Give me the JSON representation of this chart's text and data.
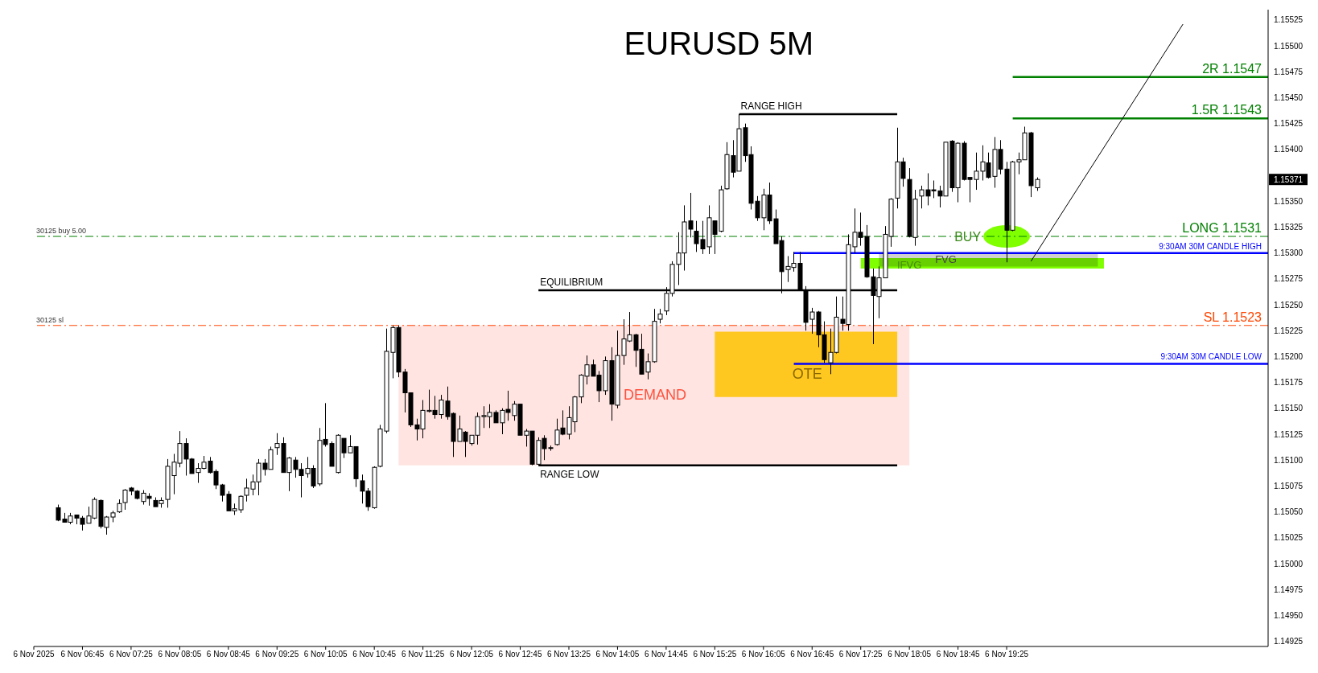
{
  "chart_data": {
    "type": "candlestick",
    "title": "EURUSD 5M",
    "xlim": [
      "2025-11-06T06:05",
      "2025-11-06T23:00"
    ],
    "xticks": [
      {
        "value": "2025-11-06T06:05",
        "label": "6 Nov 2025"
      },
      {
        "value": "2025-11-06T06:45",
        "label": "6 Nov 06:45"
      },
      {
        "value": "2025-11-06T07:25",
        "label": "6 Nov 07:25"
      },
      {
        "value": "2025-11-06T08:05",
        "label": "6 Nov 08:05"
      },
      {
        "value": "2025-11-06T08:45",
        "label": "6 Nov 08:45"
      },
      {
        "value": "2025-11-06T09:25",
        "label": "6 Nov 09:25"
      },
      {
        "value": "2025-11-06T10:05",
        "label": "6 Nov 10:05"
      },
      {
        "value": "2025-11-06T10:45",
        "label": "6 Nov 10:45"
      },
      {
        "value": "2025-11-06T11:25",
        "label": "6 Nov 11:25"
      },
      {
        "value": "2025-11-06T12:05",
        "label": "6 Nov 12:05"
      },
      {
        "value": "2025-11-06T12:45",
        "label": "6 Nov 12:45"
      },
      {
        "value": "2025-11-06T13:25",
        "label": "6 Nov 13:25"
      },
      {
        "value": "2025-11-06T14:05",
        "label": "6 Nov 14:05"
      },
      {
        "value": "2025-11-06T14:45",
        "label": "6 Nov 14:45"
      },
      {
        "value": "2025-11-06T15:25",
        "label": "6 Nov 15:25"
      },
      {
        "value": "2025-11-06T16:05",
        "label": "6 Nov 16:05"
      },
      {
        "value": "2025-11-06T16:45",
        "label": "6 Nov 16:45"
      },
      {
        "value": "2025-11-06T17:25",
        "label": "6 Nov 17:25"
      },
      {
        "value": "2025-11-06T18:05",
        "label": "6 Nov 18:05"
      },
      {
        "value": "2025-11-06T18:45",
        "label": "6 Nov 18:45"
      },
      {
        "value": "2025-11-06T19:25",
        "label": "6 Nov 19:25"
      }
    ],
    "ylim": [
      1.1492,
      1.15535
    ],
    "yticks": [
      1.14925,
      {
        "value": 1.1495,
        "label": "1.14950"
      },
      1.14975,
      {
        "value": 1.15,
        "label": "1.15000"
      },
      1.15025,
      {
        "value": 1.1505,
        "label": "1.15050"
      },
      1.15075,
      {
        "value": 1.151,
        "label": "1.15100"
      },
      1.15125,
      {
        "value": 1.1515,
        "label": "1.15150"
      },
      1.15175,
      {
        "value": 1.152,
        "label": "1.15200"
      },
      1.15225,
      {
        "value": 1.1525,
        "label": "1.15250"
      },
      1.15275,
      {
        "value": 1.153,
        "label": "1.15300"
      },
      1.15325,
      {
        "value": 1.1535,
        "label": "1.15350"
      },
      {
        "value": 1.154,
        "label": "1.15400"
      },
      1.15425,
      {
        "value": 1.1545,
        "label": "1.15450"
      },
      1.15475,
      {
        "value": 1.155,
        "label": "1.15500"
      },
      1.15525
    ],
    "ref_lines": [
      {
        "axis": "y",
        "value": 1.15316,
        "label": "LONG 1.1531",
        "color": "#008000",
        "line_style": "dashed"
      },
      {
        "axis": "y",
        "value": 1.1523,
        "label": "SL 1.1523",
        "color": "#ff4500",
        "line_style": "dashed"
      }
    ],
    "annotations": [
      {
        "text": "30125 buy 5.00",
        "x": "2025-11-06T06:05",
        "y": 1.15316
      },
      {
        "text": "30125 sl",
        "x": "2025-11-06T06:05",
        "y": 1.1523
      },
      {
        "text": "FVG",
        "x": "2025-11-06T18:35",
        "y": 1.15294
      },
      {
        "text": "IFVG",
        "x": "2025-11-06T18:05",
        "y": 1.15289
      },
      {
        "text": "BUY",
        "x": "2025-11-06T19:25",
        "y": 1.15316
      },
      "1.15371",
      "DEMAND",
      "OTE"
    ],
    "series": [
      {
        "type": "area",
        "x": [
          "2025-11-06T11:05",
          "2025-11-06T18:05"
        ],
        "values": [
          null,
          null
        ],
        "lower": [
          1.15095,
          1.15095
        ],
        "upper": [
          1.1523,
          1.1523
        ],
        "color": "#ffe4e1"
      },
      {
        "type": "area",
        "x": [
          "2025-11-06T15:25",
          "2025-11-06T17:55"
        ],
        "values": [
          null,
          null
        ],
        "lower": [
          1.15161,
          1.15161
        ],
        "upper": [
          1.15224,
          1.15224
        ],
        "color": "#ffc820"
      },
      {
        "type": "area",
        "x": [
          "2025-11-06T17:40",
          "2025-11-06T20:40"
        ],
        "values": [
          null,
          null
        ],
        "lower": [
          1.15287,
          1.15287
        ],
        "upper": [
          1.153,
          1.153
        ],
        "color": "#d0d0d0"
      },
      {
        "type": "area",
        "x": [
          "2025-11-06T17:25",
          "2025-11-06T20:45"
        ],
        "values": [
          null,
          null
        ],
        "lower": [
          1.15285,
          1.15285
        ],
        "upper": [
          1.15295,
          1.15295
        ],
        "color": "#80ff00"
      },
      {
        "type": "line",
        "name": "RANGE HIGH",
        "x": [
          "2025-11-06T15:45",
          "2025-11-06T17:55"
        ],
        "values": [
          1.15434,
          1.15434
        ],
        "color": "#000000"
      },
      {
        "type": "line",
        "name": "EQUILIBRIUM",
        "x": [
          "2025-11-06T13:00",
          "2025-11-06T17:55"
        ],
        "values": [
          1.15264,
          1.15264
        ],
        "color": "#000000"
      },
      {
        "type": "line",
        "name": "RANGE LOW",
        "x": [
          "2025-11-06T13:00",
          "2025-11-06T17:55"
        ],
        "values": [
          1.15095,
          1.15095
        ],
        "color": "#000000"
      },
      {
        "type": "line",
        "name": "9:30AM 30M CANDLE HIGH",
        "x": [
          "2025-11-06T16:30",
          "2025-11-06T23:00"
        ],
        "values": [
          1.153,
          1.153
        ],
        "color": "#0000ff"
      },
      {
        "type": "line",
        "name": "9:30AM 30M CANDLE LOW",
        "x": [
          "2025-11-06T16:30",
          "2025-11-06T23:00"
        ],
        "values": [
          1.15193,
          1.15193
        ],
        "color": "#0000ff"
      },
      {
        "type": "line",
        "name": "2R 1.1547",
        "x": [
          "2025-11-06T19:30",
          "2025-11-06T23:00"
        ],
        "values": [
          1.1547,
          1.1547
        ],
        "color": "#008000"
      },
      {
        "type": "line",
        "name": "1.5R 1.1543",
        "x": [
          "2025-11-06T19:30",
          "2025-11-06T23:00"
        ],
        "values": [
          1.1543,
          1.1543
        ],
        "color": "#008000"
      },
      {
        "type": "line",
        "x": [
          "2025-11-06T19:45",
          "2025-11-06T21:50"
        ],
        "values": [
          1.15292,
          1.15521
        ],
        "color": "#000000"
      },
      {
        "color": "#000000",
        "x": [
          "2025-11-06T06:25",
          "2025-11-06T06:30",
          "2025-11-06T06:35",
          "2025-11-06T06:40",
          "2025-11-06T06:45",
          "2025-11-06T06:50",
          "2025-11-06T06:55",
          "2025-11-06T07:00",
          "2025-11-06T07:05",
          "2025-11-06T07:10",
          "2025-11-06T07:15",
          "2025-11-06T07:20",
          "2025-11-06T07:25",
          "2025-11-06T07:30",
          "2025-11-06T07:35",
          "2025-11-06T07:40",
          "2025-11-06T07:45",
          "2025-11-06T07:50",
          "2025-11-06T07:55",
          "2025-11-06T08:00",
          "2025-11-06T08:05",
          "2025-11-06T08:10",
          "2025-11-06T08:15",
          "2025-11-06T08:20",
          "2025-11-06T08:25",
          "2025-11-06T08:30",
          "2025-11-06T08:35",
          "2025-11-06T08:40",
          "2025-11-06T08:45",
          "2025-11-06T08:50",
          "2025-11-06T08:55",
          "2025-11-06T09:00",
          "2025-11-06T09:05",
          "2025-11-06T09:10",
          "2025-11-06T09:15",
          "2025-11-06T09:20",
          "2025-11-06T09:25",
          "2025-11-06T09:30",
          "2025-11-06T09:35",
          "2025-11-06T09:40",
          "2025-11-06T09:45",
          "2025-11-06T09:50",
          "2025-11-06T09:55",
          "2025-11-06T10:00",
          "2025-11-06T10:05",
          "2025-11-06T10:10",
          "2025-11-06T10:15",
          "2025-11-06T10:20",
          "2025-11-06T10:25",
          "2025-11-06T10:30",
          "2025-11-06T10:35",
          "2025-11-06T10:40",
          "2025-11-06T10:45",
          "2025-11-06T10:50",
          "2025-11-06T10:55",
          "2025-11-06T11:00",
          "2025-11-06T11:05",
          "2025-11-06T11:10",
          "2025-11-06T11:15",
          "2025-11-06T11:20",
          "2025-11-06T11:25",
          "2025-11-06T11:30",
          "2025-11-06T11:35",
          "2025-11-06T11:40",
          "2025-11-06T11:45",
          "2025-11-06T11:50",
          "2025-11-06T11:55",
          "2025-11-06T12:00",
          "2025-11-06T12:05",
          "2025-11-06T12:10",
          "2025-11-06T12:15",
          "2025-11-06T12:20",
          "2025-11-06T12:25",
          "2025-11-06T12:30",
          "2025-11-06T12:35",
          "2025-11-06T12:40",
          "2025-11-06T12:45",
          "2025-11-06T12:50",
          "2025-11-06T12:55",
          "2025-11-06T13:00",
          "2025-11-06T13:05",
          "2025-11-06T13:10",
          "2025-11-06T13:15",
          "2025-11-06T13:20",
          "2025-11-06T13:25",
          "2025-11-06T13:30",
          "2025-11-06T13:35",
          "2025-11-06T13:40",
          "2025-11-06T13:45",
          "2025-11-06T13:50",
          "2025-11-06T13:55",
          "2025-11-06T14:00",
          "2025-11-06T14:05",
          "2025-11-06T14:10",
          "2025-11-06T14:15",
          "2025-11-06T14:20",
          "2025-11-06T14:25",
          "2025-11-06T14:30",
          "2025-11-06T14:35",
          "2025-11-06T14:40",
          "2025-11-06T14:45",
          "2025-11-06T14:50",
          "2025-11-06T14:55",
          "2025-11-06T15:00",
          "2025-11-06T15:05",
          "2025-11-06T15:10",
          "2025-11-06T15:15",
          "2025-11-06T15:20",
          "2025-11-06T15:25",
          "2025-11-06T15:30",
          "2025-11-06T15:35",
          "2025-11-06T15:40",
          "2025-11-06T15:45",
          "2025-11-06T15:50",
          "2025-11-06T15:55",
          "2025-11-06T16:00",
          "2025-11-06T16:05",
          "2025-11-06T16:10",
          "2025-11-06T16:15",
          "2025-11-06T16:20",
          "2025-11-06T16:25",
          "2025-11-06T16:30",
          "2025-11-06T16:35",
          "2025-11-06T16:40",
          "2025-11-06T16:45",
          "2025-11-06T16:50",
          "2025-11-06T16:55",
          "2025-11-06T17:00",
          "2025-11-06T17:05",
          "2025-11-06T17:10",
          "2025-11-06T17:15",
          "2025-11-06T17:20",
          "2025-11-06T17:25",
          "2025-11-06T17:30",
          "2025-11-06T17:35",
          "2025-11-06T17:40",
          "2025-11-06T17:45",
          "2025-11-06T17:50",
          "2025-11-06T17:55",
          "2025-11-06T18:00",
          "2025-11-06T18:05",
          "2025-11-06T18:10",
          "2025-11-06T18:15",
          "2025-11-06T18:20",
          "2025-11-06T18:25",
          "2025-11-06T18:30",
          "2025-11-06T18:35",
          "2025-11-06T18:40",
          "2025-11-06T18:45",
          "2025-11-06T18:50",
          "2025-11-06T18:55",
          "2025-11-06T19:00",
          "2025-11-06T19:05",
          "2025-11-06T19:10",
          "2025-11-06T19:15",
          "2025-11-06T19:20",
          "2025-11-06T19:25",
          "2025-11-06T19:30",
          "2025-11-06T19:35",
          "2025-11-06T19:40",
          "2025-11-06T19:45",
          "2025-11-06T19:50"
        ],
        "ohlc": [
          [
            1.15054,
            1.15057,
            1.15041,
            1.15042
          ],
          [
            1.15043,
            1.15049,
            1.1504,
            1.1504
          ],
          [
            1.1504,
            1.15049,
            1.15038,
            1.15046
          ],
          [
            1.15047,
            1.15047,
            1.15038,
            1.15044
          ],
          [
            1.15044,
            1.15046,
            1.15032,
            1.15038
          ],
          [
            1.15039,
            1.15055,
            1.15039,
            1.15046
          ],
          [
            1.15044,
            1.15064,
            1.15043,
            1.15062
          ],
          [
            1.15061,
            1.15062,
            1.15034,
            1.15036
          ],
          [
            1.15035,
            1.15046,
            1.15028,
            1.15045
          ],
          [
            1.15045,
            1.15051,
            1.1504,
            1.15049
          ],
          [
            1.1505,
            1.15062,
            1.15049,
            1.15058
          ],
          [
            1.15059,
            1.15072,
            1.15052,
            1.15071
          ],
          [
            1.15073,
            1.15074,
            1.15066,
            1.1507
          ],
          [
            1.1507,
            1.15071,
            1.15062,
            1.15063
          ],
          [
            1.1506,
            1.15071,
            1.15057,
            1.15068
          ],
          [
            1.15065,
            1.15068,
            1.15056,
            1.15063
          ],
          [
            1.15061,
            1.15064,
            1.15055,
            1.15055
          ],
          [
            1.15058,
            1.15064,
            1.15054,
            1.15061
          ],
          [
            1.15062,
            1.15101,
            1.15054,
            1.15094
          ],
          [
            1.15085,
            1.15106,
            1.15067,
            1.15098
          ],
          [
            1.15097,
            1.15128,
            1.15093,
            1.15116
          ],
          [
            1.15116,
            1.15121,
            1.15085,
            1.15101
          ],
          [
            1.15101,
            1.15102,
            1.15087,
            1.15087
          ],
          [
            1.15088,
            1.15097,
            1.15078,
            1.15092
          ],
          [
            1.15092,
            1.15104,
            1.15091,
            1.15098
          ],
          [
            1.15099,
            1.15103,
            1.15087,
            1.15088
          ],
          [
            1.15089,
            1.15091,
            1.15072,
            1.15076
          ],
          [
            1.15076,
            1.15077,
            1.1506,
            1.15066
          ],
          [
            1.15067,
            1.1507,
            1.15051,
            1.15051
          ],
          [
            1.15051,
            1.15058,
            1.15047,
            1.15053
          ],
          [
            1.15052,
            1.15066,
            1.15049,
            1.15065
          ],
          [
            1.15066,
            1.15082,
            1.1506,
            1.15073
          ],
          [
            1.15072,
            1.15086,
            1.15066,
            1.15079
          ],
          [
            1.15079,
            1.15101,
            1.15066,
            1.15097
          ],
          [
            1.15097,
            1.15101,
            1.15085,
            1.15091
          ],
          [
            1.15091,
            1.15113,
            1.15091,
            1.1511
          ],
          [
            1.15112,
            1.15126,
            1.15105,
            1.15116
          ],
          [
            1.15116,
            1.15122,
            1.15088,
            1.15088
          ],
          [
            1.15088,
            1.15103,
            1.1507,
            1.15102
          ],
          [
            1.151,
            1.15103,
            1.15083,
            1.15091
          ],
          [
            1.15091,
            1.15097,
            1.15064,
            1.15085
          ],
          [
            1.15087,
            1.15103,
            1.15083,
            1.15092
          ],
          [
            1.15092,
            1.15095,
            1.15073,
            1.15075
          ],
          [
            1.15077,
            1.15131,
            1.15075,
            1.15119
          ],
          [
            1.1512,
            1.15155,
            1.15113,
            1.15115
          ],
          [
            1.15116,
            1.15118,
            1.15094,
            1.15094
          ],
          [
            1.15088,
            1.15125,
            1.15087,
            1.15124
          ],
          [
            1.15121,
            1.15121,
            1.15102,
            1.15107
          ],
          [
            1.15107,
            1.15124,
            1.15107,
            1.15113
          ],
          [
            1.15113,
            1.15113,
            1.15074,
            1.15082
          ],
          [
            1.1508,
            1.15086,
            1.15058,
            1.1507
          ],
          [
            1.1507,
            1.15073,
            1.15051,
            1.15055
          ],
          [
            1.15054,
            1.15094,
            1.15053,
            1.15093
          ],
          [
            1.15094,
            1.15134,
            1.15093,
            1.1513
          ],
          [
            1.15128,
            1.15227,
            1.15126,
            1.15205
          ],
          [
            1.15204,
            1.1523,
            1.15179,
            1.15228
          ],
          [
            1.15228,
            1.1523,
            1.1518,
            1.15185
          ],
          [
            1.15185,
            1.15188,
            1.15146,
            1.15165
          ],
          [
            1.15165,
            1.15165,
            1.15132,
            1.15134
          ],
          [
            1.15134,
            1.1514,
            1.15119,
            1.1513
          ],
          [
            1.1513,
            1.15158,
            1.15121,
            1.15148
          ],
          [
            1.15147,
            1.15168,
            1.15146,
            1.15148
          ],
          [
            1.15148,
            1.15162,
            1.1514,
            1.15144
          ],
          [
            1.15144,
            1.15163,
            1.1514,
            1.15158
          ],
          [
            1.15157,
            1.15171,
            1.15139,
            1.15142
          ],
          [
            1.15145,
            1.15146,
            1.15103,
            1.15118
          ],
          [
            1.15118,
            1.15143,
            1.15118,
            1.1513
          ],
          [
            1.15127,
            1.15128,
            1.15103,
            1.15118
          ],
          [
            1.15116,
            1.15124,
            1.15114,
            1.15124
          ],
          [
            1.15124,
            1.15146,
            1.15115,
            1.15142
          ],
          [
            1.15142,
            1.15152,
            1.15131,
            1.15143
          ],
          [
            1.15142,
            1.15154,
            1.15131,
            1.15146
          ],
          [
            1.15146,
            1.15148,
            1.15136,
            1.15136
          ],
          [
            1.15136,
            1.1515,
            1.15125,
            1.15148
          ],
          [
            1.15149,
            1.15167,
            1.15138,
            1.15146
          ],
          [
            1.15143,
            1.15157,
            1.15138,
            1.15154
          ],
          [
            1.15154,
            1.15154,
            1.15124,
            1.15124
          ],
          [
            1.15124,
            1.1513,
            1.15113,
            1.15128
          ],
          [
            1.15128,
            1.15128,
            1.15095,
            1.15096
          ],
          [
            1.15096,
            1.15122,
            1.15095,
            1.15119
          ],
          [
            1.15121,
            1.15124,
            1.151,
            1.15111
          ],
          [
            1.15112,
            1.15114,
            1.15109,
            1.15112
          ],
          [
            1.15115,
            1.1514,
            1.15114,
            1.15129
          ],
          [
            1.15131,
            1.15148,
            1.15124,
            1.15125
          ],
          [
            1.15125,
            1.15152,
            1.1512,
            1.15141
          ],
          [
            1.15137,
            1.15162,
            1.15127,
            1.15161
          ],
          [
            1.15161,
            1.15183,
            1.15155,
            1.15182
          ],
          [
            1.15181,
            1.15201,
            1.15173,
            1.15192
          ],
          [
            1.15192,
            1.15197,
            1.15181,
            1.15181
          ],
          [
            1.15182,
            1.15186,
            1.15156,
            1.15167
          ],
          [
            1.15167,
            1.152,
            1.15163,
            1.15196
          ],
          [
            1.15196,
            1.15209,
            1.15138,
            1.15154
          ],
          [
            1.15153,
            1.15225,
            1.1515,
            1.15201
          ],
          [
            1.15201,
            1.15236,
            1.15192,
            1.15217
          ],
          [
            1.15215,
            1.15243,
            1.15214,
            1.15221
          ],
          [
            1.15221,
            1.15222,
            1.1519,
            1.15206
          ],
          [
            1.15207,
            1.15222,
            1.15183,
            1.15183
          ],
          [
            1.15185,
            1.15203,
            1.15178,
            1.15195
          ],
          [
            1.15195,
            1.15246,
            1.15194,
            1.15234
          ],
          [
            1.15236,
            1.15246,
            1.15232,
            1.15241
          ],
          [
            1.15244,
            1.15267,
            1.1524,
            1.15261
          ],
          [
            1.15261,
            1.15292,
            1.15258,
            1.15289
          ],
          [
            1.15289,
            1.1532,
            1.15269,
            1.153
          ],
          [
            1.153,
            1.15346,
            1.15283,
            1.1533
          ],
          [
            1.15331,
            1.15358,
            1.15315,
            1.15323
          ],
          [
            1.15321,
            1.15331,
            1.15301,
            1.15309
          ],
          [
            1.15313,
            1.15331,
            1.15299,
            1.15304
          ],
          [
            1.15306,
            1.15346,
            1.15299,
            1.15334
          ],
          [
            1.15331,
            1.15331,
            1.15299,
            1.15318
          ],
          [
            1.15321,
            1.15365,
            1.1532,
            1.15361
          ],
          [
            1.15362,
            1.15407,
            1.15361,
            1.15395
          ],
          [
            1.15394,
            1.15409,
            1.15373,
            1.15378
          ],
          [
            1.15379,
            1.15434,
            1.15379,
            1.1542
          ],
          [
            1.15421,
            1.15425,
            1.15388,
            1.15394
          ],
          [
            1.15395,
            1.15403,
            1.15342,
            1.15348
          ],
          [
            1.1535,
            1.15355,
            1.15331,
            1.15334
          ],
          [
            1.15334,
            1.15362,
            1.15322,
            1.15356
          ],
          [
            1.15356,
            1.15368,
            1.15328,
            1.15331
          ],
          [
            1.15333,
            1.15342,
            1.15309,
            1.15309
          ],
          [
            1.15312,
            1.15316,
            1.15261,
            1.15282
          ],
          [
            1.15284,
            1.15297,
            1.15272,
            1.15287
          ],
          [
            1.15286,
            1.15301,
            1.15282,
            1.1529
          ],
          [
            1.1529,
            1.15301,
            1.15264,
            1.15264
          ],
          [
            1.15264,
            1.15268,
            1.15225,
            1.15233
          ],
          [
            1.15236,
            1.15247,
            1.15222,
            1.15243
          ],
          [
            1.15243,
            1.15244,
            1.15209,
            1.15221
          ],
          [
            1.15221,
            1.15234,
            1.15194,
            1.15197
          ],
          [
            1.15194,
            1.15227,
            1.15183,
            1.15204
          ],
          [
            1.15204,
            1.15258,
            1.15203,
            1.15238
          ],
          [
            1.15236,
            1.15258,
            1.15225,
            1.15232
          ],
          [
            1.15231,
            1.15318,
            1.15225,
            1.15308
          ],
          [
            1.15306,
            1.15343,
            1.153,
            1.1532
          ],
          [
            1.1532,
            1.15339,
            1.15307,
            1.15315
          ],
          [
            1.15316,
            1.15327,
            1.15276,
            1.15277
          ],
          [
            1.15277,
            1.15285,
            1.15212,
            1.15259
          ],
          [
            1.15258,
            1.15287,
            1.15237,
            1.15276
          ],
          [
            1.15276,
            1.15326,
            1.15276,
            1.15318
          ],
          [
            1.15316,
            1.15353,
            1.15306,
            1.15352
          ],
          [
            1.15353,
            1.15421,
            1.15343,
            1.15388
          ],
          [
            1.15388,
            1.15392,
            1.15364,
            1.15372
          ],
          [
            1.15371,
            1.15382,
            1.15315,
            1.15316
          ],
          [
            1.15315,
            1.15361,
            1.15307,
            1.15352
          ],
          [
            1.15355,
            1.15365,
            1.15343,
            1.15361
          ],
          [
            1.15361,
            1.15377,
            1.15346,
            1.15355
          ],
          [
            1.15361,
            1.1537,
            1.15353,
            1.1536
          ],
          [
            1.1536,
            1.15365,
            1.15344,
            1.15355
          ],
          [
            1.15355,
            1.15407,
            1.15355,
            1.15407
          ],
          [
            1.15408,
            1.15409,
            1.15359,
            1.15363
          ],
          [
            1.15363,
            1.15407,
            1.15349,
            1.15406
          ],
          [
            1.15406,
            1.15408,
            1.1537,
            1.15371
          ],
          [
            1.15373,
            1.15373,
            1.15349,
            1.15371
          ],
          [
            1.15371,
            1.15397,
            1.15361,
            1.15379
          ],
          [
            1.15379,
            1.15404,
            1.1537,
            1.15388
          ],
          [
            1.15387,
            1.15397,
            1.15372,
            1.15373
          ],
          [
            1.15374,
            1.15412,
            1.15363,
            1.154
          ],
          [
            1.154,
            1.15409,
            1.15376,
            1.15381
          ],
          [
            1.15381,
            1.15388,
            1.15291,
            1.15322
          ],
          [
            1.15322,
            1.15389,
            1.15321,
            1.15388
          ],
          [
            1.15388,
            1.15397,
            1.15376,
            1.1539
          ],
          [
            1.1539,
            1.15422,
            1.1539,
            1.15416
          ],
          [
            1.15416,
            1.15417,
            1.15354,
            1.15365
          ],
          [
            1.15363,
            1.15373,
            1.1536,
            1.15371
          ]
        ]
      }
    ]
  }
}
